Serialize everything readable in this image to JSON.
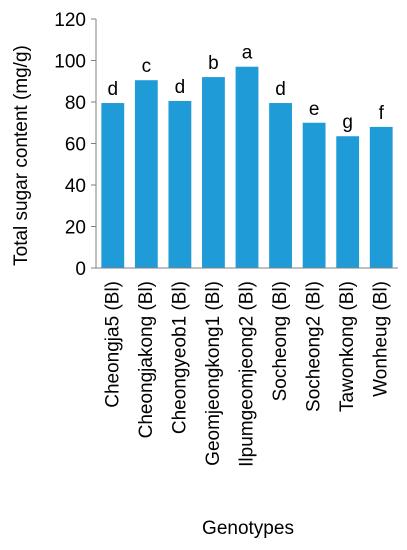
{
  "chart_data": {
    "type": "bar",
    "categories": [
      "Cheongja5 (Bl)",
      "Cheongjakong (Bl)",
      "Cheongyeob1 (Bl)",
      "Geomjeongkong1 (Bl)",
      "Ilpumgeomjeong2 (Bl)",
      "Socheong (Bl)",
      "Socheong2 (Bl)",
      "Tawonkong (Bl)",
      "Wonheug (Bl)"
    ],
    "values": [
      79.5,
      90.5,
      80.5,
      92,
      97,
      79.5,
      70,
      63.5,
      68
    ],
    "significance_letters": [
      "d",
      "c",
      "d",
      "b",
      "a",
      "d",
      "e",
      "g",
      "f"
    ],
    "title": "",
    "xlabel": "Genotypes",
    "ylabel": "Total sugar content (mg/g)",
    "ylim": [
      0,
      120
    ],
    "yticks": [
      0,
      20,
      40,
      60,
      80,
      100,
      120
    ],
    "grid": false,
    "legend": "none",
    "bar_color": "#1F9BD7",
    "axis_color": "#7f7f7f"
  }
}
